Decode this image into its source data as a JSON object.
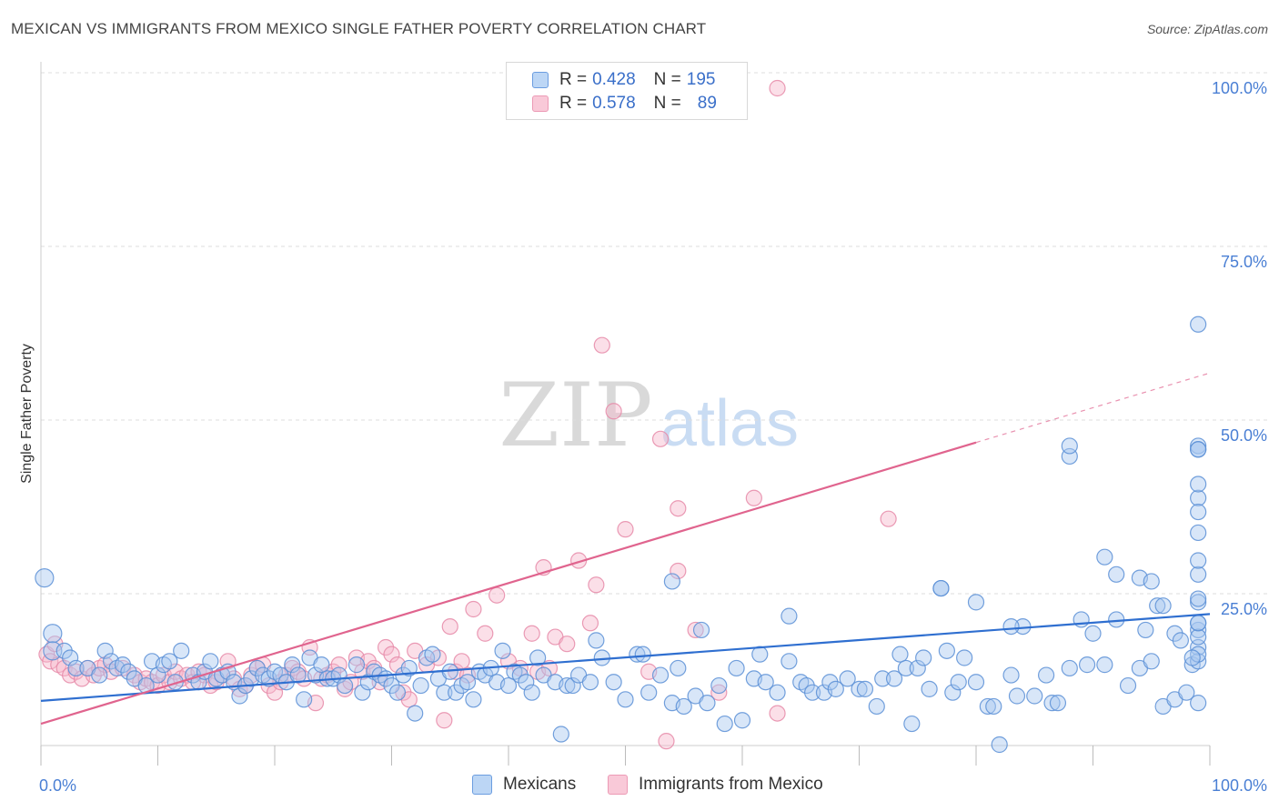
{
  "title": "MEXICAN VS IMMIGRANTS FROM MEXICO SINGLE FATHER POVERTY CORRELATION CHART",
  "source": "Source: ZipAtlas.com",
  "watermark": {
    "zip": "ZIP",
    "atlas": "atlas"
  },
  "legend": {
    "rows": [
      {
        "r_label": "R =",
        "r_value": "0.428",
        "n_label": "N =",
        "n_value": "195"
      },
      {
        "r_label": "R =",
        "r_value": "0.578",
        "n_label": "N =",
        "n_value": "89"
      }
    ]
  },
  "bottom_legend": [
    "Mexicans",
    "Immigrants from Mexico"
  ],
  "chart_data": {
    "type": "scatter",
    "title": "MEXICAN VS IMMIGRANTS FROM MEXICO SINGLE FATHER POVERTY CORRELATION CHART",
    "xlabel": "",
    "ylabel": "Single Father Poverty",
    "xlim": [
      0,
      1
    ],
    "ylim": [
      0,
      1.04
    ],
    "x_tick_labels": [
      "0.0%",
      "100.0%"
    ],
    "y_tick_labels": [
      "25.0%",
      "50.0%",
      "75.0%",
      "100.0%"
    ],
    "y_ticks": [
      0.25,
      0.5,
      0.75,
      1.0
    ],
    "grid": true,
    "legend_position": "top-center",
    "colors": {
      "blue_fill": "#a8c8f0",
      "blue_stroke": "#5b8fd6",
      "blue_line": "#2f6fd0",
      "pink_fill": "#f6b8cb",
      "pink_stroke": "#e68aa8",
      "pink_line": "#e0648e",
      "axis_text": "#4a7fd4"
    },
    "series": [
      {
        "name": "Mexicans",
        "trend": {
          "x0": 0.0,
          "y0": 0.118,
          "x1": 1.0,
          "y1": 0.243
        },
        "points": [
          [
            0.003,
            0.295
          ],
          [
            0.01,
            0.215
          ],
          [
            0.01,
            0.19
          ],
          [
            0.02,
            0.19
          ],
          [
            0.025,
            0.18
          ],
          [
            0.03,
            0.165
          ],
          [
            0.04,
            0.165
          ],
          [
            0.05,
            0.155
          ],
          [
            0.055,
            0.19
          ],
          [
            0.06,
            0.175
          ],
          [
            0.065,
            0.165
          ],
          [
            0.07,
            0.17
          ],
          [
            0.075,
            0.16
          ],
          [
            0.08,
            0.15
          ],
          [
            0.09,
            0.14
          ],
          [
            0.095,
            0.175
          ],
          [
            0.1,
            0.155
          ],
          [
            0.105,
            0.17
          ],
          [
            0.11,
            0.175
          ],
          [
            0.115,
            0.145
          ],
          [
            0.12,
            0.19
          ],
          [
            0.13,
            0.155
          ],
          [
            0.135,
            0.145
          ],
          [
            0.14,
            0.16
          ],
          [
            0.145,
            0.175
          ],
          [
            0.15,
            0.15
          ],
          [
            0.155,
            0.155
          ],
          [
            0.16,
            0.16
          ],
          [
            0.165,
            0.145
          ],
          [
            0.17,
            0.125
          ],
          [
            0.175,
            0.14
          ],
          [
            0.18,
            0.15
          ],
          [
            0.185,
            0.165
          ],
          [
            0.19,
            0.155
          ],
          [
            0.195,
            0.15
          ],
          [
            0.2,
            0.16
          ],
          [
            0.205,
            0.155
          ],
          [
            0.21,
            0.145
          ],
          [
            0.215,
            0.17
          ],
          [
            0.22,
            0.155
          ],
          [
            0.225,
            0.12
          ],
          [
            0.23,
            0.18
          ],
          [
            0.235,
            0.155
          ],
          [
            0.24,
            0.17
          ],
          [
            0.245,
            0.15
          ],
          [
            0.25,
            0.15
          ],
          [
            0.255,
            0.155
          ],
          [
            0.26,
            0.14
          ],
          [
            0.27,
            0.17
          ],
          [
            0.275,
            0.13
          ],
          [
            0.28,
            0.145
          ],
          [
            0.285,
            0.16
          ],
          [
            0.29,
            0.155
          ],
          [
            0.295,
            0.15
          ],
          [
            0.3,
            0.14
          ],
          [
            0.305,
            0.13
          ],
          [
            0.31,
            0.155
          ],
          [
            0.315,
            0.165
          ],
          [
            0.32,
            0.1
          ],
          [
            0.325,
            0.14
          ],
          [
            0.33,
            0.18
          ],
          [
            0.335,
            0.185
          ],
          [
            0.34,
            0.15
          ],
          [
            0.345,
            0.13
          ],
          [
            0.35,
            0.16
          ],
          [
            0.355,
            0.13
          ],
          [
            0.36,
            0.14
          ],
          [
            0.365,
            0.145
          ],
          [
            0.37,
            0.12
          ],
          [
            0.375,
            0.16
          ],
          [
            0.38,
            0.155
          ],
          [
            0.385,
            0.165
          ],
          [
            0.39,
            0.145
          ],
          [
            0.395,
            0.19
          ],
          [
            0.4,
            0.14
          ],
          [
            0.405,
            0.16
          ],
          [
            0.41,
            0.155
          ],
          [
            0.415,
            0.145
          ],
          [
            0.42,
            0.13
          ],
          [
            0.425,
            0.18
          ],
          [
            0.43,
            0.155
          ],
          [
            0.44,
            0.145
          ],
          [
            0.445,
            0.07
          ],
          [
            0.45,
            0.14
          ],
          [
            0.455,
            0.14
          ],
          [
            0.46,
            0.155
          ],
          [
            0.47,
            0.145
          ],
          [
            0.475,
            0.205
          ],
          [
            0.48,
            0.18
          ],
          [
            0.49,
            0.145
          ],
          [
            0.5,
            0.12
          ],
          [
            0.51,
            0.185
          ],
          [
            0.515,
            0.185
          ],
          [
            0.52,
            0.13
          ],
          [
            0.53,
            0.155
          ],
          [
            0.54,
            0.115
          ],
          [
            0.545,
            0.165
          ],
          [
            0.55,
            0.11
          ],
          [
            0.56,
            0.125
          ],
          [
            0.565,
            0.22
          ],
          [
            0.57,
            0.115
          ],
          [
            0.58,
            0.14
          ],
          [
            0.585,
            0.085
          ],
          [
            0.595,
            0.165
          ],
          [
            0.6,
            0.09
          ],
          [
            0.61,
            0.15
          ],
          [
            0.615,
            0.185
          ],
          [
            0.62,
            0.145
          ],
          [
            0.63,
            0.13
          ],
          [
            0.64,
            0.175
          ],
          [
            0.64,
            0.24
          ],
          [
            0.65,
            0.145
          ],
          [
            0.655,
            0.14
          ],
          [
            0.66,
            0.13
          ],
          [
            0.67,
            0.13
          ],
          [
            0.675,
            0.145
          ],
          [
            0.68,
            0.135
          ],
          [
            0.69,
            0.15
          ],
          [
            0.7,
            0.135
          ],
          [
            0.705,
            0.135
          ],
          [
            0.715,
            0.11
          ],
          [
            0.72,
            0.15
          ],
          [
            0.73,
            0.15
          ],
          [
            0.735,
            0.185
          ],
          [
            0.74,
            0.165
          ],
          [
            0.745,
            0.085
          ],
          [
            0.75,
            0.165
          ],
          [
            0.755,
            0.18
          ],
          [
            0.76,
            0.135
          ],
          [
            0.77,
            0.28
          ],
          [
            0.775,
            0.19
          ],
          [
            0.78,
            0.13
          ],
          [
            0.785,
            0.145
          ],
          [
            0.79,
            0.18
          ],
          [
            0.8,
            0.145
          ],
          [
            0.81,
            0.11
          ],
          [
            0.815,
            0.11
          ],
          [
            0.82,
            0.055
          ],
          [
            0.83,
            0.155
          ],
          [
            0.835,
            0.125
          ],
          [
            0.84,
            0.225
          ],
          [
            0.85,
            0.125
          ],
          [
            0.86,
            0.155
          ],
          [
            0.865,
            0.115
          ],
          [
            0.87,
            0.115
          ],
          [
            0.88,
            0.165
          ],
          [
            0.89,
            0.235
          ],
          [
            0.895,
            0.17
          ],
          [
            0.9,
            0.215
          ],
          [
            0.91,
            0.17
          ],
          [
            0.92,
            0.235
          ],
          [
            0.93,
            0.14
          ],
          [
            0.94,
            0.165
          ],
          [
            0.945,
            0.22
          ],
          [
            0.95,
            0.175
          ],
          [
            0.955,
            0.255
          ],
          [
            0.96,
            0.11
          ],
          [
            0.97,
            0.12
          ],
          [
            0.98,
            0.13
          ],
          [
            0.985,
            0.17
          ],
          [
            0.99,
            0.195
          ],
          [
            0.995,
            0.22
          ],
          [
            0.998,
            0.175
          ],
          [
            0.999,
            0.185
          ],
          [
            1.0,
            0.3
          ],
          [
            1.0,
            0.23
          ],
          [
            1.0,
            0.21
          ],
          [
            1.0,
            0.26
          ],
          [
            0.88,
            0.47
          ],
          [
            0.91,
            0.325
          ],
          [
            0.92,
            0.3
          ],
          [
            0.94,
            0.295
          ],
          [
            0.95,
            0.29
          ],
          [
            0.96,
            0.255
          ],
          [
            0.97,
            0.215
          ],
          [
            0.975,
            0.205
          ],
          [
            0.985,
            0.18
          ],
          [
            0.99,
            0.36
          ],
          [
            0.995,
            0.41
          ],
          [
            1.0,
            0.32
          ],
          [
            1.0,
            0.265
          ],
          [
            1.0,
            0.23
          ],
          [
            1.0,
            0.115
          ],
          [
            1.0,
            0.43
          ],
          [
            1.0,
            0.39
          ],
          [
            1.0,
            0.485
          ],
          [
            1.0,
            0.48
          ],
          [
            1.0,
            0.66
          ],
          [
            1.0,
            0.48
          ],
          [
            0.54,
            0.29
          ],
          [
            0.77,
            0.28
          ],
          [
            0.88,
            0.485
          ],
          [
            0.83,
            0.225
          ],
          [
            0.8,
            0.26
          ]
        ]
      },
      {
        "name": "Immigrants from Mexico",
        "trend": {
          "x0": 0.0,
          "y0": 0.085,
          "x1": 0.8,
          "y1": 0.49
        },
        "trend_dashed": {
          "x0": 0.8,
          "y0": 0.49,
          "x1": 1.0,
          "y1": 0.59
        },
        "points": [
          [
            0.005,
            0.185
          ],
          [
            0.008,
            0.175
          ],
          [
            0.012,
            0.2
          ],
          [
            0.015,
            0.17
          ],
          [
            0.02,
            0.165
          ],
          [
            0.025,
            0.155
          ],
          [
            0.03,
            0.16
          ],
          [
            0.035,
            0.15
          ],
          [
            0.04,
            0.165
          ],
          [
            0.045,
            0.155
          ],
          [
            0.05,
            0.165
          ],
          [
            0.055,
            0.17
          ],
          [
            0.06,
            0.16
          ],
          [
            0.07,
            0.165
          ],
          [
            0.08,
            0.155
          ],
          [
            0.085,
            0.145
          ],
          [
            0.09,
            0.15
          ],
          [
            0.095,
            0.145
          ],
          [
            0.1,
            0.14
          ],
          [
            0.105,
            0.155
          ],
          [
            0.11,
            0.145
          ],
          [
            0.115,
            0.16
          ],
          [
            0.12,
            0.15
          ],
          [
            0.125,
            0.155
          ],
          [
            0.13,
            0.145
          ],
          [
            0.135,
            0.16
          ],
          [
            0.14,
            0.155
          ],
          [
            0.145,
            0.14
          ],
          [
            0.15,
            0.145
          ],
          [
            0.155,
            0.155
          ],
          [
            0.16,
            0.175
          ],
          [
            0.165,
            0.15
          ],
          [
            0.17,
            0.135
          ],
          [
            0.175,
            0.14
          ],
          [
            0.18,
            0.155
          ],
          [
            0.185,
            0.165
          ],
          [
            0.19,
            0.17
          ],
          [
            0.195,
            0.14
          ],
          [
            0.2,
            0.13
          ],
          [
            0.205,
            0.145
          ],
          [
            0.21,
            0.155
          ],
          [
            0.215,
            0.165
          ],
          [
            0.22,
            0.16
          ],
          [
            0.225,
            0.15
          ],
          [
            0.23,
            0.195
          ],
          [
            0.235,
            0.115
          ],
          [
            0.24,
            0.15
          ],
          [
            0.245,
            0.155
          ],
          [
            0.25,
            0.16
          ],
          [
            0.255,
            0.17
          ],
          [
            0.26,
            0.135
          ],
          [
            0.265,
            0.145
          ],
          [
            0.27,
            0.18
          ],
          [
            0.275,
            0.16
          ],
          [
            0.28,
            0.175
          ],
          [
            0.285,
            0.165
          ],
          [
            0.29,
            0.145
          ],
          [
            0.295,
            0.195
          ],
          [
            0.3,
            0.185
          ],
          [
            0.305,
            0.17
          ],
          [
            0.31,
            0.13
          ],
          [
            0.315,
            0.12
          ],
          [
            0.32,
            0.19
          ],
          [
            0.33,
            0.17
          ],
          [
            0.34,
            0.18
          ],
          [
            0.345,
            0.09
          ],
          [
            0.35,
            0.225
          ],
          [
            0.355,
            0.16
          ],
          [
            0.36,
            0.175
          ],
          [
            0.365,
            0.155
          ],
          [
            0.37,
            0.25
          ],
          [
            0.38,
            0.215
          ],
          [
            0.39,
            0.27
          ],
          [
            0.4,
            0.175
          ],
          [
            0.41,
            0.165
          ],
          [
            0.42,
            0.215
          ],
          [
            0.425,
            0.16
          ],
          [
            0.43,
            0.31
          ],
          [
            0.435,
            0.165
          ],
          [
            0.44,
            0.21
          ],
          [
            0.45,
            0.2
          ],
          [
            0.46,
            0.32
          ],
          [
            0.47,
            0.23
          ],
          [
            0.475,
            0.285
          ],
          [
            0.48,
            0.63
          ],
          [
            0.49,
            0.535
          ],
          [
            0.5,
            0.365
          ],
          [
            0.52,
            0.16
          ],
          [
            0.53,
            0.495
          ],
          [
            0.535,
            0.06
          ],
          [
            0.545,
            0.395
          ],
          [
            0.545,
            0.305
          ],
          [
            0.56,
            0.22
          ],
          [
            0.58,
            0.13
          ],
          [
            0.61,
            0.41
          ],
          [
            0.725,
            0.38
          ],
          [
            0.63,
            0.1
          ],
          [
            0.63,
            1.0
          ]
        ]
      }
    ]
  }
}
